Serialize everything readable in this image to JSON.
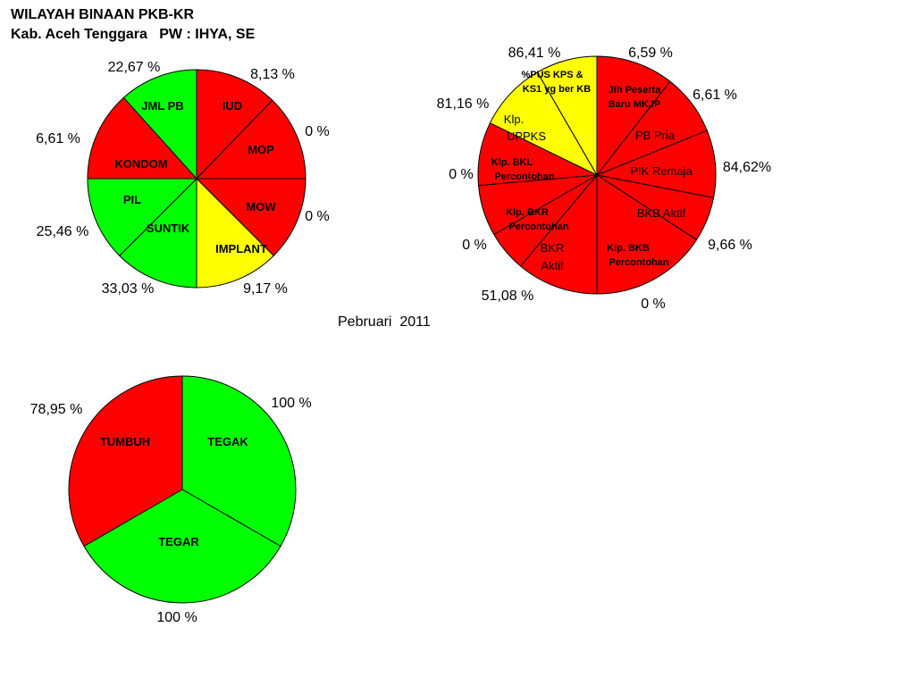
{
  "header": {
    "line1": "WILAYAH BINAAN PKB-KR",
    "line2": "Kab. Aceh Tenggara   PW : IHYA, SE"
  },
  "period": "Pebruari  2011",
  "colors": {
    "red": "#ff0000",
    "green": "#00ff00",
    "yellow": "#ffff00",
    "outline": "#000000"
  },
  "chart_data": [
    {
      "type": "pie",
      "title": "",
      "slices": [
        {
          "label": "IUD",
          "value": 8.13,
          "value_label": "8,13 %",
          "color": "#ff0000"
        },
        {
          "label": "MOP",
          "value": 0,
          "value_label": "0 %",
          "color": "#ff0000"
        },
        {
          "label": "MOW",
          "value": 0,
          "value_label": "0 %",
          "color": "#ff0000"
        },
        {
          "label": "IMPLANT",
          "value": 9.17,
          "value_label": "9,17 %",
          "color": "#ffff00"
        },
        {
          "label": "SUNTIK",
          "value": 33.03,
          "value_label": "33,03 %",
          "color": "#00ff00"
        },
        {
          "label": "PIL",
          "value": 25.46,
          "value_label": "25,46 %",
          "color": "#00ff00"
        },
        {
          "label": "KONDOM",
          "value": 6.61,
          "value_label": "6,61 %",
          "color": "#ff0000"
        },
        {
          "label": "JML PB",
          "value": 22.67,
          "value_label": "22,67 %",
          "color": "#00ff00"
        }
      ]
    },
    {
      "type": "pie",
      "title": "",
      "slices": [
        {
          "label": "Jlh Peserta Baru MKJP",
          "value": 6.59,
          "value_label": "6,59 %",
          "color": "#ff0000"
        },
        {
          "label": "PB Pria",
          "value": 6.61,
          "value_label": "6,61 %",
          "color": "#ff0000"
        },
        {
          "label": "PIK Remaja",
          "value": 84.62,
          "value_label": "84,62%",
          "color": "#ff0000"
        },
        {
          "label": "BKB Aktif",
          "value": 9.66,
          "value_label": "9,66 %",
          "color": "#ff0000"
        },
        {
          "label": "Klp. BKB Percontohan",
          "value": 0,
          "value_label": "0 %",
          "color": "#ff0000"
        },
        {
          "label": "BKR Aktif",
          "value": 51.08,
          "value_label": "51,08 %",
          "color": "#ff0000"
        },
        {
          "label": "Klp. BKR Percontohan",
          "value": 0,
          "value_label": "0 %",
          "color": "#ff0000"
        },
        {
          "label": "Klp. BKL Percontohan",
          "value": 0,
          "value_label": "0 %",
          "color": "#ff0000"
        },
        {
          "label": "Klp. UPPKS",
          "value": 81.16,
          "value_label": "81,16 %",
          "color": "#ff0000"
        },
        {
          "label": "%PUS KPS & KS1 yg ber KB",
          "value": 86.41,
          "value_label": "86,41 %",
          "color": "#ffff00"
        }
      ]
    },
    {
      "type": "pie",
      "title": "",
      "slices": [
        {
          "label": "TEGAK",
          "value": 100,
          "value_label": "100 %",
          "color": "#00ff00"
        },
        {
          "label": "TEGAR",
          "value": 100,
          "value_label": "100 %",
          "color": "#00ff00"
        },
        {
          "label": "TUMBUH",
          "value": 78.95,
          "value_label": "78,95 %",
          "color": "#ff0000"
        }
      ]
    }
  ]
}
